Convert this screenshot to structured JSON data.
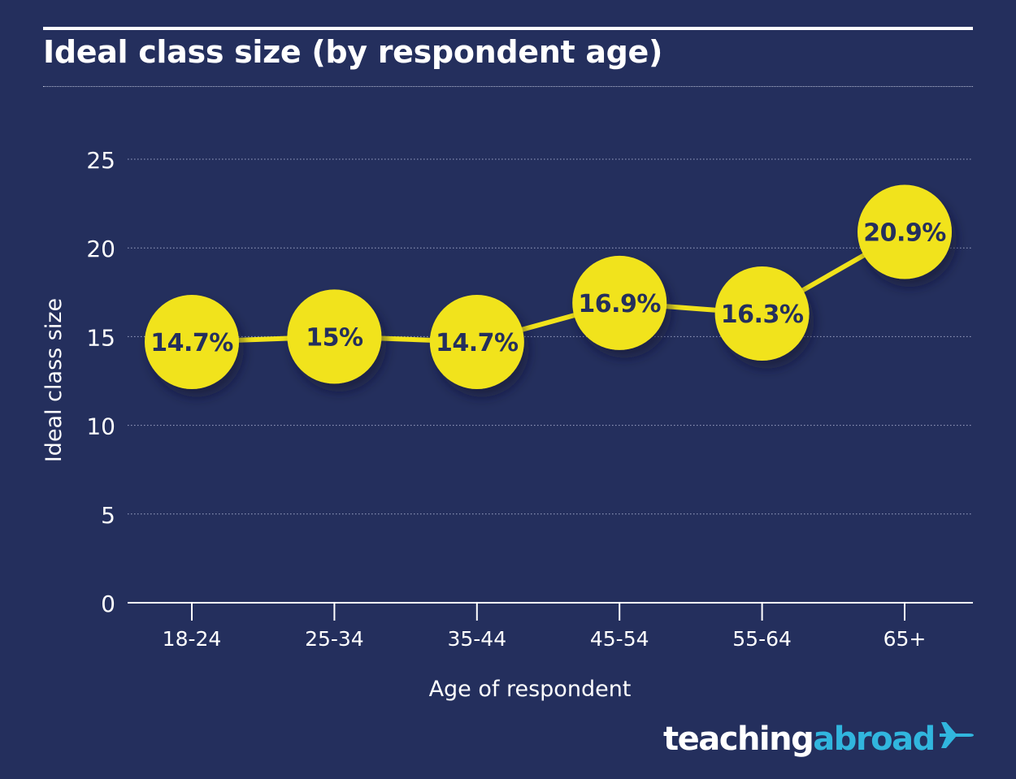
{
  "header": {
    "title": "Ideal class size (by respondent age)"
  },
  "brand": {
    "word1": "teaching",
    "word2": "abroad",
    "icon": "airplane-icon",
    "color_primary": "#ffffff",
    "color_accent": "#31b6de"
  },
  "colors": {
    "background": "#242f5d",
    "marker": "#f1e31b",
    "line": "#f1e31b",
    "label_text": "#242f5d"
  },
  "chart_data": {
    "type": "line",
    "title": "Ideal class size (by respondent age)",
    "xlabel": "Age of respondent",
    "ylabel": "Ideal class size",
    "ylim": [
      0,
      25
    ],
    "yticks": [
      0,
      5,
      10,
      15,
      20,
      25
    ],
    "grid": true,
    "categories": [
      "18-24",
      "25-34",
      "35-44",
      "45-54",
      "55-64",
      "65+"
    ],
    "series": [
      {
        "name": "Ideal class size",
        "values": [
          14.7,
          15,
          14.7,
          16.9,
          16.3,
          20.9
        ],
        "labels": [
          "14.7%",
          "15%",
          "14.7%",
          "16.9%",
          "16.3%",
          "20.9%"
        ]
      }
    ]
  }
}
